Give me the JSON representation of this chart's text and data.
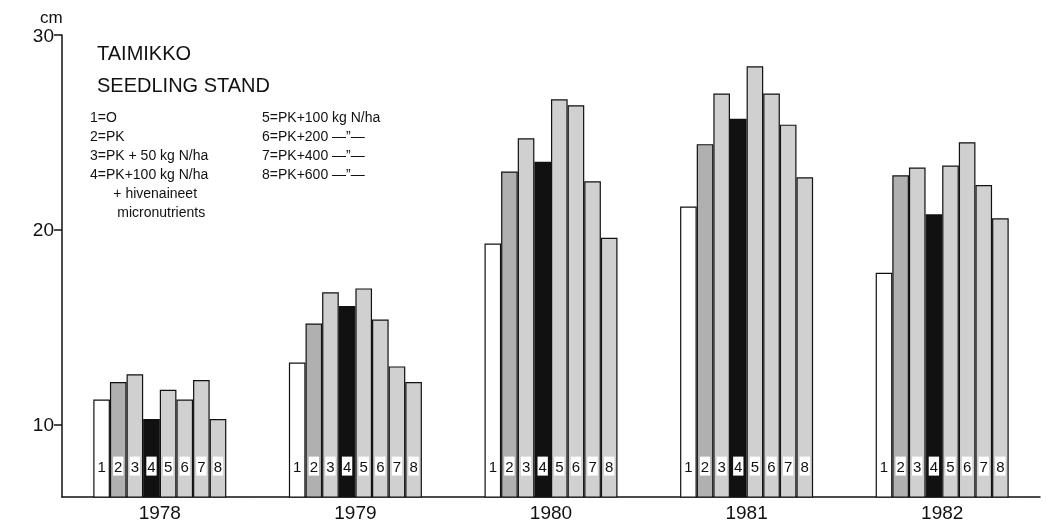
{
  "chart_data": {
    "type": "bar",
    "title": "TAIMIKKO",
    "subtitle": "SEEDLING STAND",
    "ylabel": "cm",
    "categories": [
      "1978",
      "1979",
      "1980",
      "1981",
      "1982"
    ],
    "series": [
      {
        "name": "1",
        "color": "#ffffff",
        "values": [
          11.3,
          13.2,
          19.3,
          21.2,
          17.8
        ]
      },
      {
        "name": "2",
        "color": "#b0b0b0",
        "values": [
          12.2,
          15.2,
          23.0,
          24.4,
          22.8
        ]
      },
      {
        "name": "3",
        "color": "#d0d0d0",
        "values": [
          12.6,
          16.8,
          24.7,
          27.0,
          23.2
        ]
      },
      {
        "name": "4",
        "color": "#111111",
        "values": [
          10.3,
          16.1,
          23.5,
          25.7,
          20.8
        ]
      },
      {
        "name": "5",
        "color": "#d0d0d0",
        "values": [
          11.8,
          17.0,
          26.7,
          28.4,
          23.3
        ]
      },
      {
        "name": "6",
        "color": "#d0d0d0",
        "values": [
          11.3,
          15.4,
          26.4,
          27.0,
          24.5
        ]
      },
      {
        "name": "7",
        "color": "#d0d0d0",
        "values": [
          12.3,
          13.0,
          22.5,
          25.4,
          22.3
        ]
      },
      {
        "name": "8",
        "color": "#d0d0d0",
        "values": [
          10.3,
          12.2,
          19.6,
          22.7,
          20.6
        ]
      }
    ],
    "annotations": [
      "1=O",
      "2=PK",
      "3=PK + 50 kg N/ha",
      "4=PK+100 kg N/ha\n      + hivenaineet\n       micronutrients",
      "5=PK+100 kg N/ha",
      "6=PK+200 —”—",
      "7=PK+400 —”—",
      "8=PK+600 —”—"
    ],
    "ylim": [
      6.3,
      30
    ],
    "yticks": [
      10,
      20,
      30
    ],
    "grid": false,
    "legend": false
  }
}
